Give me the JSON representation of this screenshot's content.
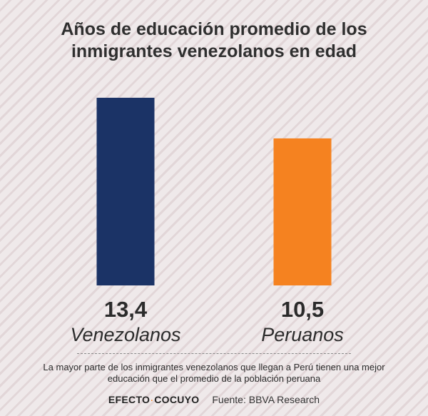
{
  "header": {
    "title_line1": "Años de educación promedio de los",
    "title_line2": "inmigrantes venezolanos en edad"
  },
  "chart_data": {
    "type": "bar",
    "categories": [
      "Venezolanos",
      "Peruanos"
    ],
    "values": [
      13.4,
      10.5
    ],
    "value_labels": [
      "13,4",
      "10,5"
    ],
    "colors": [
      "#1b3366",
      "#f58220"
    ],
    "ylim": [
      0,
      13.4
    ],
    "grid": false,
    "title": "Años de educación promedio de los inmigrantes venezolanos en edad",
    "xlabel": "",
    "ylabel": ""
  },
  "caption": {
    "line1": "La mayor parte de los inmigrantes venezolanos que llegan a Perú tienen una mejor",
    "line2": "educación que el promedio de la población peruana"
  },
  "footer": {
    "brand_left": "EFECTO",
    "brand_sep": "·",
    "brand_right": "COCUYO",
    "source": "Fuente: BBVA Research"
  }
}
